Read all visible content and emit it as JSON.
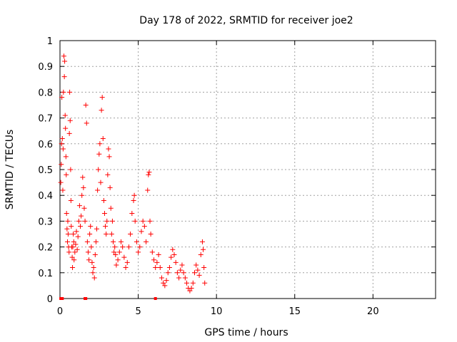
{
  "chart_data": {
    "type": "scatter",
    "title": "Day 178 of 2022, SRMTID for receiver joe2",
    "xlabel": "GPS time / hours",
    "ylabel": "SRMTID / TECUs",
    "xlim": [
      0,
      24
    ],
    "ylim": [
      0,
      1
    ],
    "xticks": [
      0,
      5,
      10,
      15,
      20
    ],
    "yticks": [
      0,
      0.1,
      0.2,
      0.3,
      0.4,
      0.5,
      0.6,
      0.7,
      0.8,
      0.9,
      1
    ],
    "ytick_labels": [
      "0",
      "0.1",
      "0.2",
      "0.3",
      "0.4",
      "0.5",
      "0.6",
      "0.7",
      "0.8",
      "0.9",
      "1"
    ],
    "xtick_labels": [
      "0",
      "5",
      "10",
      "15",
      "20"
    ],
    "grid": true,
    "marker": "plus",
    "color": "#ff0000",
    "series": [
      {
        "name": "SRMTID",
        "points": [
          [
            0.05,
            0.45
          ],
          [
            0.08,
            0.52
          ],
          [
            0.1,
            0.6
          ],
          [
            0.12,
            0.78
          ],
          [
            0.15,
            0.62
          ],
          [
            0.18,
            0.42
          ],
          [
            0.2,
            0.58
          ],
          [
            0.22,
            0.8
          ],
          [
            0.25,
            0.94
          ],
          [
            0.28,
            0.86
          ],
          [
            0.3,
            0.92
          ],
          [
            0.33,
            0.71
          ],
          [
            0.35,
            0.66
          ],
          [
            0.38,
            0.55
          ],
          [
            0.4,
            0.48
          ],
          [
            0.42,
            0.33
          ],
          [
            0.45,
            0.27
          ],
          [
            0.48,
            0.22
          ],
          [
            0.5,
            0.3
          ],
          [
            0.52,
            0.25
          ],
          [
            0.55,
            0.2
          ],
          [
            0.58,
            0.18
          ],
          [
            0.6,
            0.64
          ],
          [
            0.62,
            0.8
          ],
          [
            0.65,
            0.69
          ],
          [
            0.68,
            0.5
          ],
          [
            0.7,
            0.38
          ],
          [
            0.72,
            0.28
          ],
          [
            0.75,
            0.2
          ],
          [
            0.78,
            0.16
          ],
          [
            0.8,
            0.12
          ],
          [
            0.82,
            0.2
          ],
          [
            0.85,
            0.25
          ],
          [
            0.88,
            0.22
          ],
          [
            0.9,
            0.15
          ],
          [
            0.95,
            0.18
          ],
          [
            1.0,
            0.21
          ],
          [
            1.05,
            0.26
          ],
          [
            1.1,
            0.19
          ],
          [
            1.15,
            0.24
          ],
          [
            1.2,
            0.3
          ],
          [
            1.25,
            0.36
          ],
          [
            1.3,
            0.28
          ],
          [
            1.35,
            0.32
          ],
          [
            1.4,
            0.4
          ],
          [
            1.45,
            0.47
          ],
          [
            1.5,
            0.43
          ],
          [
            1.55,
            0.35
          ],
          [
            1.6,
            0.3
          ],
          [
            1.65,
            0.75
          ],
          [
            1.7,
            0.68
          ],
          [
            1.75,
            0.22
          ],
          [
            1.8,
            0.18
          ],
          [
            1.85,
            0.15
          ],
          [
            1.9,
            0.25
          ],
          [
            1.95,
            0.28
          ],
          [
            2.0,
            0.2
          ],
          [
            2.05,
            0.14
          ],
          [
            2.1,
            0.1
          ],
          [
            2.15,
            0.12
          ],
          [
            2.2,
            0.08
          ],
          [
            2.25,
            0.17
          ],
          [
            2.3,
            0.22
          ],
          [
            2.35,
            0.27
          ],
          [
            2.4,
            0.42
          ],
          [
            2.45,
            0.5
          ],
          [
            2.5,
            0.56
          ],
          [
            2.55,
            0.6
          ],
          [
            2.6,
            0.45
          ],
          [
            2.65,
            0.73
          ],
          [
            2.7,
            0.78
          ],
          [
            2.75,
            0.62
          ],
          [
            2.8,
            0.38
          ],
          [
            2.85,
            0.33
          ],
          [
            2.9,
            0.28
          ],
          [
            2.95,
            0.25
          ],
          [
            3.0,
            0.3
          ],
          [
            3.05,
            0.48
          ],
          [
            3.1,
            0.58
          ],
          [
            3.15,
            0.55
          ],
          [
            3.2,
            0.43
          ],
          [
            3.25,
            0.35
          ],
          [
            3.3,
            0.25
          ],
          [
            3.35,
            0.3
          ],
          [
            3.4,
            0.22
          ],
          [
            3.45,
            0.18
          ],
          [
            3.5,
            0.2
          ],
          [
            3.55,
            0.17
          ],
          [
            3.6,
            0.13
          ],
          [
            3.7,
            0.15
          ],
          [
            3.8,
            0.18
          ],
          [
            3.9,
            0.22
          ],
          [
            4.0,
            0.2
          ],
          [
            4.1,
            0.16
          ],
          [
            4.2,
            0.12
          ],
          [
            4.3,
            0.14
          ],
          [
            4.4,
            0.2
          ],
          [
            4.5,
            0.25
          ],
          [
            4.6,
            0.33
          ],
          [
            4.7,
            0.38
          ],
          [
            4.75,
            0.4
          ],
          [
            4.8,
            0.3
          ],
          [
            4.9,
            0.22
          ],
          [
            5.0,
            0.18
          ],
          [
            5.1,
            0.2
          ],
          [
            5.2,
            0.26
          ],
          [
            5.3,
            0.3
          ],
          [
            5.4,
            0.28
          ],
          [
            5.5,
            0.22
          ],
          [
            5.6,
            0.42
          ],
          [
            5.65,
            0.48
          ],
          [
            5.7,
            0.49
          ],
          [
            5.75,
            0.3
          ],
          [
            5.8,
            0.25
          ],
          [
            5.9,
            0.18
          ],
          [
            6.0,
            0.15
          ],
          [
            6.1,
            0.12
          ],
          [
            6.2,
            0.14
          ],
          [
            6.3,
            0.17
          ],
          [
            6.4,
            0.12
          ],
          [
            6.5,
            0.08
          ],
          [
            6.6,
            0.06
          ],
          [
            6.7,
            0.05
          ],
          [
            6.8,
            0.07
          ],
          [
            6.9,
            0.1
          ],
          [
            7.0,
            0.12
          ],
          [
            7.1,
            0.16
          ],
          [
            7.2,
            0.19
          ],
          [
            7.3,
            0.17
          ],
          [
            7.4,
            0.14
          ],
          [
            7.5,
            0.1
          ],
          [
            7.6,
            0.08
          ],
          [
            7.7,
            0.11
          ],
          [
            7.8,
            0.13
          ],
          [
            7.9,
            0.1
          ],
          [
            8.0,
            0.08
          ],
          [
            8.1,
            0.06
          ],
          [
            8.2,
            0.04
          ],
          [
            8.3,
            0.03
          ],
          [
            8.4,
            0.04
          ],
          [
            8.5,
            0.06
          ],
          [
            8.6,
            0.1
          ],
          [
            8.7,
            0.13
          ],
          [
            8.8,
            0.11
          ],
          [
            8.9,
            0.09
          ],
          [
            9.0,
            0.17
          ],
          [
            9.1,
            0.22
          ],
          [
            9.15,
            0.19
          ],
          [
            9.2,
            0.12
          ],
          [
            9.25,
            0.06
          ]
        ]
      }
    ],
    "baseline_markers_x": [
      0.05,
      0.15,
      1.6,
      1.65,
      6.1
    ]
  }
}
